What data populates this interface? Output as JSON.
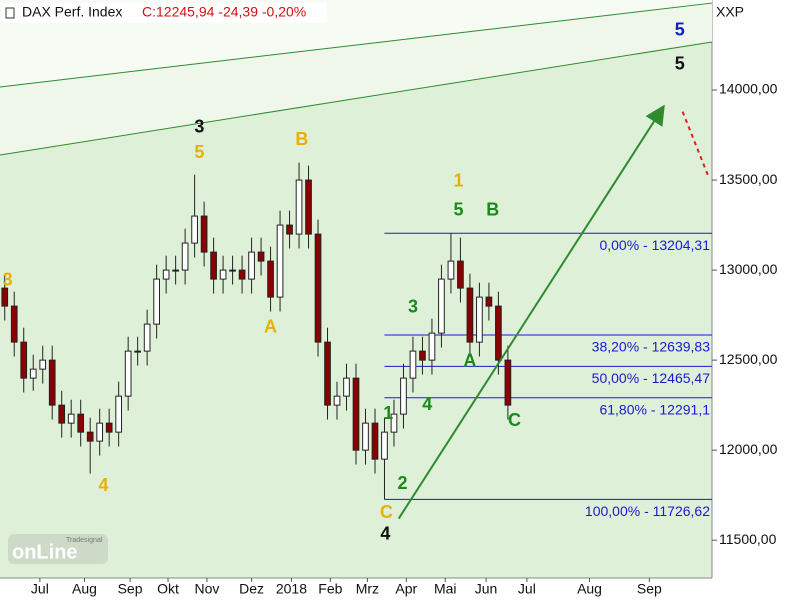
{
  "chart_data": {
    "type": "candlestick",
    "title": "DAX Perf. Index",
    "quote": "C:12245,94 -24,39 -0,20%",
    "axis_name": "XXP",
    "watermark": [
      "Tradesignal",
      "onLine"
    ],
    "xlim": [
      0,
      75
    ],
    "ylim": [
      11290,
      14500
    ],
    "xticks": [
      {
        "value": 4.2,
        "label": "Jul"
      },
      {
        "value": 8.9,
        "label": "Aug"
      },
      {
        "value": 13.7,
        "label": "Sep"
      },
      {
        "value": 17.7,
        "label": "Okt"
      },
      {
        "value": 21.8,
        "label": "Nov"
      },
      {
        "value": 26.5,
        "label": "Dez"
      },
      {
        "value": 30.7,
        "label": "2018"
      },
      {
        "value": 34.8,
        "label": "Feb"
      },
      {
        "value": 38.7,
        "label": "Mrz"
      },
      {
        "value": 42.8,
        "label": "Apr"
      },
      {
        "value": 46.9,
        "label": "Mai"
      },
      {
        "value": 51.2,
        "label": "Jun"
      },
      {
        "value": 55.5,
        "label": "Jul"
      },
      {
        "value": 62.1,
        "label": "Aug"
      },
      {
        "value": 68.4,
        "label": "Sep"
      }
    ],
    "yticks": [
      {
        "value": 11500,
        "label": "11500,00"
      },
      {
        "value": 12000,
        "label": "12000,00"
      },
      {
        "value": 12500,
        "label": "12500,00"
      },
      {
        "value": 13000,
        "label": "13000,00"
      },
      {
        "value": 13500,
        "label": "13500,00"
      },
      {
        "value": 14000,
        "label": "14000,00"
      }
    ],
    "x": [
      0.5,
      1.5,
      2.5,
      3.5,
      4.5,
      5.5,
      6.5,
      7.5,
      8.5,
      9.5,
      10.5,
      11.5,
      12.5,
      13.5,
      14.5,
      15.5,
      16.5,
      17.5,
      18.5,
      19.5,
      20.5,
      21.5,
      22.5,
      23.5,
      24.5,
      25.5,
      26.5,
      27.5,
      28.5,
      29.5,
      30.5,
      31.5,
      32.5,
      33.5,
      34.5,
      35.5,
      36.5,
      37.5,
      38.5,
      39.5,
      40.5,
      41.5,
      42.5,
      43.5,
      44.5,
      45.5,
      46.5,
      47.5,
      48.5,
      49.5,
      50.5,
      51.5,
      52.5,
      53.5
    ],
    "open": [
      12900,
      12800,
      12600,
      12400,
      12450,
      12500,
      12250,
      12150,
      12200,
      12100,
      12050,
      12150,
      12100,
      12300,
      12550,
      12550,
      12700,
      12950,
      13000,
      13000,
      13150,
      13300,
      13100,
      12950,
      13000,
      13000,
      12950,
      13100,
      13050,
      12850,
      13250,
      13200,
      13500,
      13200,
      12600,
      12250,
      12300,
      12400,
      12000,
      12150,
      11950,
      12100,
      12200,
      12400,
      12550,
      12500,
      12650,
      12950,
      13050,
      12900,
      12600,
      12850,
      12800,
      12500
    ],
    "high": [
      12980,
      12880,
      12680,
      12530,
      12580,
      12580,
      12330,
      12280,
      12280,
      12180,
      12230,
      12230,
      12380,
      12630,
      12630,
      12780,
      13030,
      13080,
      13080,
      13230,
      13530,
      13380,
      13180,
      13080,
      13080,
      13080,
      13180,
      13180,
      13130,
      13330,
      13330,
      13597,
      13580,
      13280,
      12680,
      12380,
      12480,
      12480,
      12230,
      12230,
      12180,
      12280,
      12480,
      12630,
      12630,
      12730,
      13030,
      13205,
      13180,
      12980,
      12930,
      12930,
      12880,
      12580
    ],
    "low": [
      12720,
      12520,
      12320,
      12330,
      12370,
      12170,
      12070,
      12070,
      12020,
      11870,
      11970,
      12020,
      12020,
      12220,
      12470,
      12470,
      12620,
      12870,
      12920,
      12920,
      13070,
      13020,
      12870,
      12870,
      12920,
      12870,
      12870,
      12970,
      12770,
      12770,
      13120,
      13120,
      13120,
      12520,
      12170,
      12170,
      12220,
      11920,
      11920,
      11870,
      11726,
      12020,
      12120,
      12320,
      12420,
      12420,
      12570,
      12870,
      12820,
      12520,
      12520,
      12720,
      12420,
      12170
    ],
    "close": [
      12800,
      12600,
      12400,
      12450,
      12500,
      12250,
      12150,
      12200,
      12100,
      12050,
      12150,
      12100,
      12300,
      12550,
      12550,
      12700,
      12950,
      13000,
      13000,
      13150,
      13300,
      13100,
      12950,
      13000,
      13000,
      12950,
      13100,
      13050,
      12850,
      13250,
      13200,
      13500,
      13200,
      12600,
      12250,
      12300,
      12400,
      12000,
      12150,
      11950,
      12100,
      12200,
      12400,
      12550,
      12500,
      12650,
      12950,
      13050,
      12900,
      12600,
      12850,
      12800,
      12500,
      12250
    ],
    "up_color": "#ffffff",
    "down_color": "#8b0000",
    "channel": {
      "color": "#2e8b2e",
      "upper": {
        "x": [
          0,
          75
        ],
        "y": [
          14017,
          14483
        ]
      },
      "lower": {
        "x": [
          0,
          75
        ],
        "y": [
          13639,
          14267
        ]
      }
    },
    "fib_from_x": 40.5,
    "fib_color": "#1a1ad0",
    "fib": [
      {
        "value": 13204.31,
        "label": "0,00% - 13204,31"
      },
      {
        "value": 12639.83,
        "label": "38,20% - 12639,83"
      },
      {
        "value": 12465.47,
        "label": "50,00% - 12465,47"
      },
      {
        "value": 12291.1,
        "label": "61,80% - 12291,1"
      },
      {
        "value": 11726.62,
        "label": "100,00% - 11726,62"
      }
    ],
    "arrow": {
      "color": "#2e8b2e",
      "x": [
        42,
        69.8
      ],
      "y": [
        11620,
        13900
      ]
    },
    "projection": {
      "color": "#e02020",
      "x": [
        71.9,
        74.7
      ],
      "y": [
        13880,
        13510
      ]
    },
    "annotations": [
      {
        "text": "3",
        "x": 0.8,
        "y": 12940,
        "color": "#e8b000"
      },
      {
        "text": "3",
        "x": 21,
        "y": 13790,
        "color": "#111111"
      },
      {
        "text": "5",
        "x": 21,
        "y": 13650,
        "color": "#e8b000"
      },
      {
        "text": "B",
        "x": 31.8,
        "y": 13720,
        "color": "#e8b000"
      },
      {
        "text": "A",
        "x": 28.5,
        "y": 12680,
        "color": "#e8b000"
      },
      {
        "text": "4",
        "x": 10.9,
        "y": 11800,
        "color": "#e8b000"
      },
      {
        "text": "1",
        "x": 48.3,
        "y": 13490,
        "color": "#e8b000"
      },
      {
        "text": "5",
        "x": 48.3,
        "y": 13330,
        "color": "#1a8a1a"
      },
      {
        "text": "B",
        "x": 51.9,
        "y": 13330,
        "color": "#1a8a1a"
      },
      {
        "text": "3",
        "x": 43.5,
        "y": 12790,
        "color": "#1a8a1a"
      },
      {
        "text": "A",
        "x": 49.5,
        "y": 12490,
        "color": "#1a8a1a"
      },
      {
        "text": "1",
        "x": 40.9,
        "y": 12200,
        "color": "#1a8a1a"
      },
      {
        "text": "4",
        "x": 45,
        "y": 12250,
        "color": "#1a8a1a"
      },
      {
        "text": "2",
        "x": 42.4,
        "y": 11810,
        "color": "#1a8a1a"
      },
      {
        "text": "C",
        "x": 54.2,
        "y": 12160,
        "color": "#1a8a1a"
      },
      {
        "text": "C",
        "x": 40.7,
        "y": 11650,
        "color": "#e8b000"
      },
      {
        "text": "4",
        "x": 40.6,
        "y": 11530,
        "color": "#111111"
      },
      {
        "text": "5",
        "x": 71.6,
        "y": 14330,
        "color": "#1020c0"
      },
      {
        "text": "5",
        "x": 71.6,
        "y": 14140,
        "color": "#111111"
      }
    ]
  }
}
